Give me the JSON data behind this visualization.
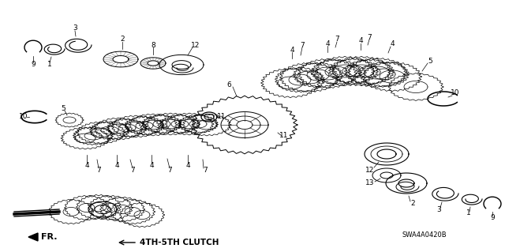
{
  "bg_color": "#ffffff",
  "label_4th5th": "4TH-5TH CLUTCH",
  "label_fr": "FR.",
  "label_code": "SWA4A0420B",
  "text_color": "#000000",
  "line_color": "#000000"
}
